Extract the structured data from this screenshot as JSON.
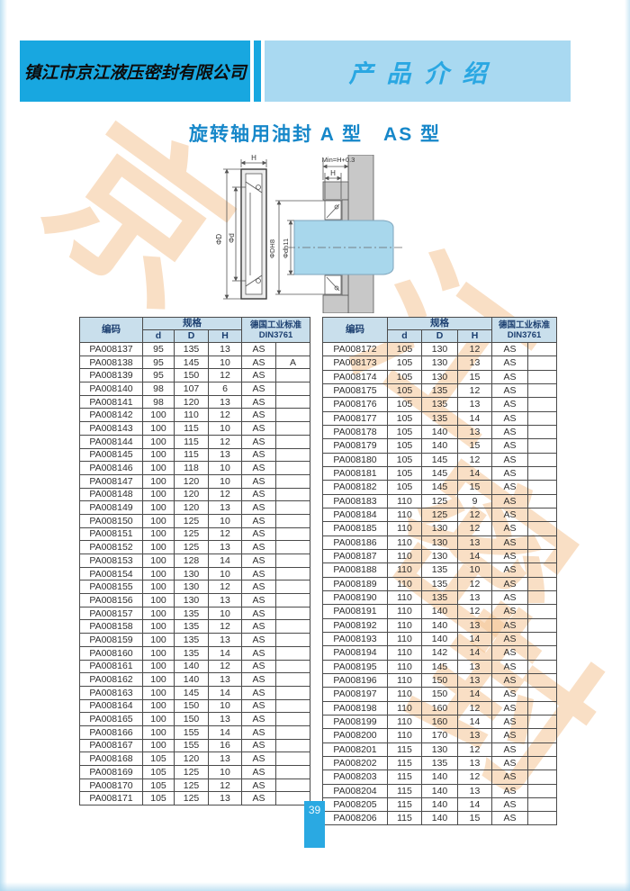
{
  "header": {
    "company": "镇江市京江液压密封有限公司",
    "section_title": "产品介绍"
  },
  "page": {
    "title": "旋转轴用油封 A 型　AS 型",
    "page_number": "39"
  },
  "colors": {
    "bar_dark_blue": "#18a7e0",
    "bar_light_blue": "#a9d9f1",
    "title_blue": "#1687c9",
    "table_header_bg": "#c9dfec",
    "watermark_orange": "#f4c496",
    "shaft_blue": "#a8d7ec",
    "housing_gray": "#c8c8c8",
    "badge_blue": "#2aa9e2"
  },
  "watermark": {
    "chars": [
      "京",
      "江",
      "密",
      "封"
    ]
  },
  "diagram": {
    "labels": {
      "h_left": "H",
      "phi_D": "ΦD",
      "phi_d": "Φd",
      "min_h": "Min=H+0.3",
      "h_right": "H",
      "phi_DH8": "ΦDH8",
      "phi_dh11": "Φdh11"
    }
  },
  "tables": {
    "headers": {
      "code": "编码",
      "spec": "规格",
      "d": "d",
      "D": "D",
      "H": "H",
      "din_line1": "德国工业标准",
      "din_line2": "DIN3761"
    },
    "left": {
      "rows": [
        [
          "PA008137",
          "95",
          "135",
          "13",
          "AS",
          ""
        ],
        [
          "PA008138",
          "95",
          "145",
          "10",
          "AS",
          "A"
        ],
        [
          "PA008139",
          "95",
          "150",
          "12",
          "AS",
          ""
        ],
        [
          "PA008140",
          "98",
          "107",
          "6",
          "AS",
          ""
        ],
        [
          "PA008141",
          "98",
          "120",
          "13",
          "AS",
          ""
        ],
        [
          "PA008142",
          "100",
          "110",
          "12",
          "AS",
          ""
        ],
        [
          "PA008143",
          "100",
          "115",
          "10",
          "AS",
          ""
        ],
        [
          "PA008144",
          "100",
          "115",
          "12",
          "AS",
          ""
        ],
        [
          "PA008145",
          "100",
          "115",
          "13",
          "AS",
          ""
        ],
        [
          "PA008146",
          "100",
          "118",
          "10",
          "AS",
          ""
        ],
        [
          "PA008147",
          "100",
          "120",
          "10",
          "AS",
          ""
        ],
        [
          "PA008148",
          "100",
          "120",
          "12",
          "AS",
          ""
        ],
        [
          "PA008149",
          "100",
          "120",
          "13",
          "AS",
          ""
        ],
        [
          "PA008150",
          "100",
          "125",
          "10",
          "AS",
          ""
        ],
        [
          "PA008151",
          "100",
          "125",
          "12",
          "AS",
          ""
        ],
        [
          "PA008152",
          "100",
          "125",
          "13",
          "AS",
          ""
        ],
        [
          "PA008153",
          "100",
          "128",
          "14",
          "AS",
          ""
        ],
        [
          "PA008154",
          "100",
          "130",
          "10",
          "AS",
          ""
        ],
        [
          "PA008155",
          "100",
          "130",
          "12",
          "AS",
          ""
        ],
        [
          "PA008156",
          "100",
          "130",
          "13",
          "AS",
          ""
        ],
        [
          "PA008157",
          "100",
          "135",
          "10",
          "AS",
          ""
        ],
        [
          "PA008158",
          "100",
          "135",
          "12",
          "AS",
          ""
        ],
        [
          "PA008159",
          "100",
          "135",
          "13",
          "AS",
          ""
        ],
        [
          "PA008160",
          "100",
          "135",
          "14",
          "AS",
          ""
        ],
        [
          "PA008161",
          "100",
          "140",
          "12",
          "AS",
          ""
        ],
        [
          "PA008162",
          "100",
          "140",
          "13",
          "AS",
          ""
        ],
        [
          "PA008163",
          "100",
          "145",
          "14",
          "AS",
          ""
        ],
        [
          "PA008164",
          "100",
          "150",
          "10",
          "AS",
          ""
        ],
        [
          "PA008165",
          "100",
          "150",
          "13",
          "AS",
          ""
        ],
        [
          "PA008166",
          "100",
          "155",
          "14",
          "AS",
          ""
        ],
        [
          "PA008167",
          "100",
          "155",
          "16",
          "AS",
          ""
        ],
        [
          "PA008168",
          "105",
          "120",
          "13",
          "AS",
          ""
        ],
        [
          "PA008169",
          "105",
          "125",
          "10",
          "AS",
          ""
        ],
        [
          "PA008170",
          "105",
          "125",
          "12",
          "AS",
          ""
        ],
        [
          "PA008171",
          "105",
          "125",
          "13",
          "AS",
          ""
        ]
      ]
    },
    "right": {
      "rows": [
        [
          "PA008172",
          "105",
          "130",
          "12",
          "AS",
          ""
        ],
        [
          "PA008173",
          "105",
          "130",
          "13",
          "AS",
          ""
        ],
        [
          "PA008174",
          "105",
          "130",
          "15",
          "AS",
          ""
        ],
        [
          "PA008175",
          "105",
          "135",
          "12",
          "AS",
          ""
        ],
        [
          "PA008176",
          "105",
          "135",
          "13",
          "AS",
          ""
        ],
        [
          "PA008177",
          "105",
          "135",
          "14",
          "AS",
          ""
        ],
        [
          "PA008178",
          "105",
          "140",
          "13",
          "AS",
          ""
        ],
        [
          "PA008179",
          "105",
          "140",
          "15",
          "AS",
          ""
        ],
        [
          "PA008180",
          "105",
          "145",
          "12",
          "AS",
          ""
        ],
        [
          "PA008181",
          "105",
          "145",
          "14",
          "AS",
          ""
        ],
        [
          "PA008182",
          "105",
          "145",
          "15",
          "AS",
          ""
        ],
        [
          "PA008183",
          "110",
          "125",
          "9",
          "AS",
          ""
        ],
        [
          "PA008184",
          "110",
          "125",
          "12",
          "AS",
          ""
        ],
        [
          "PA008185",
          "110",
          "130",
          "12",
          "AS",
          ""
        ],
        [
          "PA008186",
          "110",
          "130",
          "13",
          "AS",
          ""
        ],
        [
          "PA008187",
          "110",
          "130",
          "14",
          "AS",
          ""
        ],
        [
          "PA008188",
          "110",
          "135",
          "10",
          "AS",
          ""
        ],
        [
          "PA008189",
          "110",
          "135",
          "12",
          "AS",
          ""
        ],
        [
          "PA008190",
          "110",
          "135",
          "13",
          "AS",
          ""
        ],
        [
          "PA008191",
          "110",
          "140",
          "12",
          "AS",
          ""
        ],
        [
          "PA008192",
          "110",
          "140",
          "13",
          "AS",
          ""
        ],
        [
          "PA008193",
          "110",
          "140",
          "14",
          "AS",
          ""
        ],
        [
          "PA008194",
          "110",
          "142",
          "14",
          "AS",
          ""
        ],
        [
          "PA008195",
          "110",
          "145",
          "13",
          "AS",
          ""
        ],
        [
          "PA008196",
          "110",
          "150",
          "13",
          "AS",
          ""
        ],
        [
          "PA008197",
          "110",
          "150",
          "14",
          "AS",
          ""
        ],
        [
          "PA008198",
          "110",
          "160",
          "12",
          "AS",
          ""
        ],
        [
          "PA008199",
          "110",
          "160",
          "14",
          "AS",
          ""
        ],
        [
          "PA008200",
          "110",
          "170",
          "13",
          "AS",
          ""
        ],
        [
          "PA008201",
          "115",
          "130",
          "12",
          "AS",
          ""
        ],
        [
          "PA008202",
          "115",
          "135",
          "13",
          "AS",
          ""
        ],
        [
          "PA008203",
          "115",
          "140",
          "12",
          "AS",
          ""
        ],
        [
          "PA008204",
          "115",
          "140",
          "13",
          "AS",
          ""
        ],
        [
          "PA008205",
          "115",
          "140",
          "14",
          "AS",
          ""
        ],
        [
          "PA008206",
          "115",
          "140",
          "15",
          "AS",
          ""
        ]
      ]
    }
  }
}
